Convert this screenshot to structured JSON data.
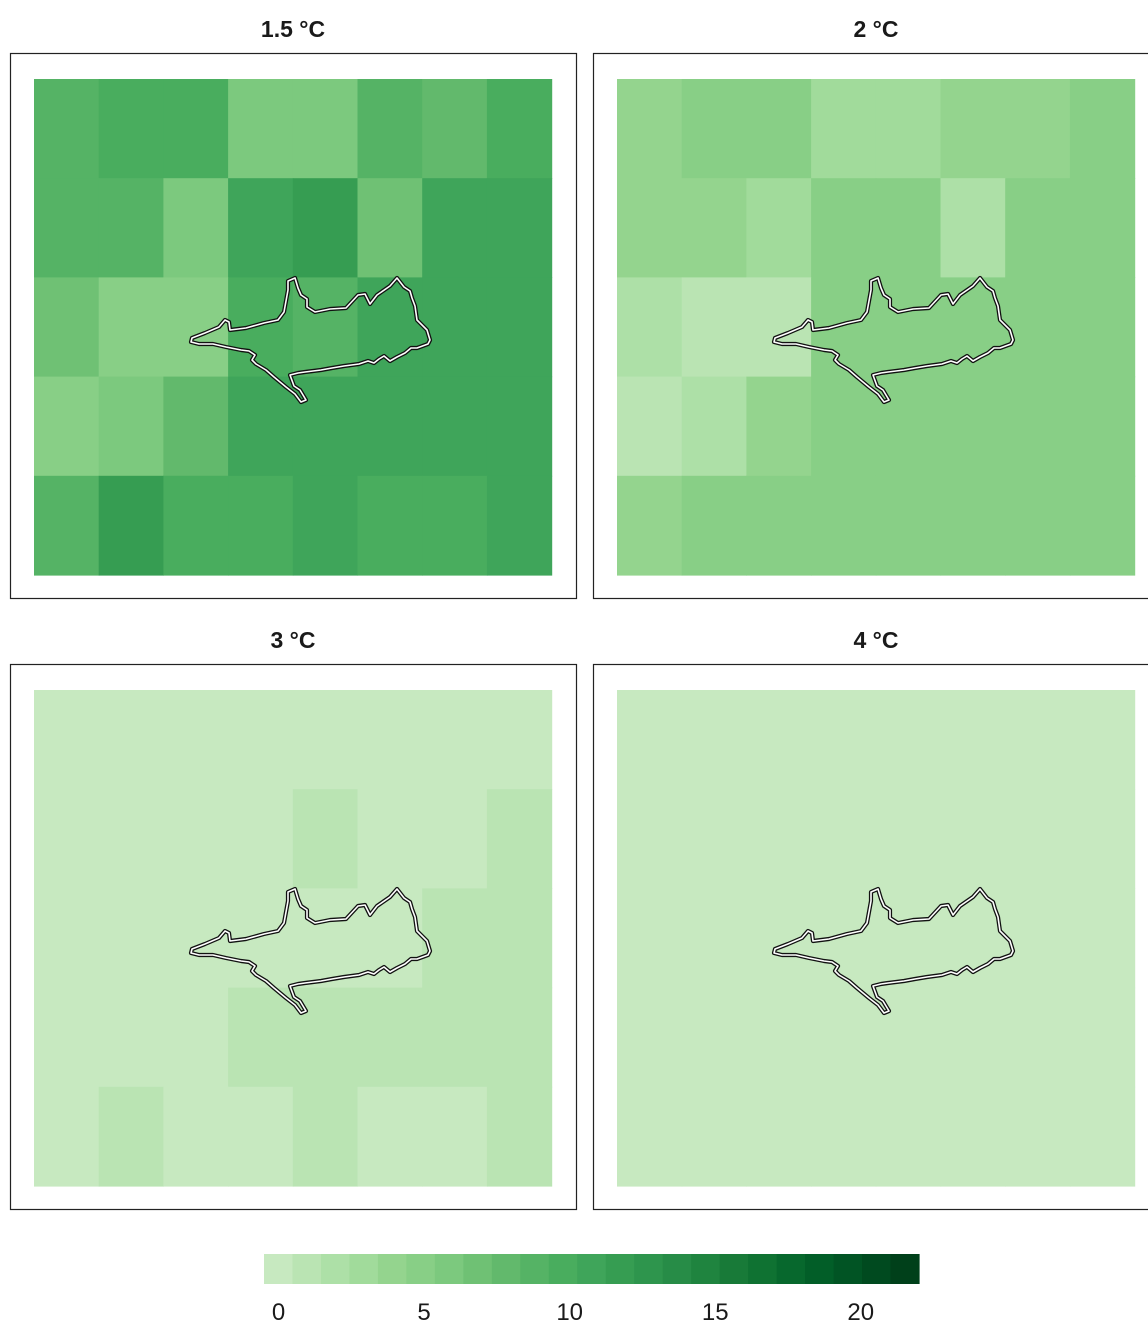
{
  "chart_data": {
    "type": "heatmap",
    "panels": [
      {
        "title": "1.5 °C",
        "grid": [
          [
            9,
            10,
            10,
            6,
            6,
            9,
            8,
            10
          ],
          [
            9,
            9,
            6,
            11,
            12,
            7,
            11,
            11
          ],
          [
            7,
            5,
            5,
            10,
            9,
            11,
            11,
            11
          ],
          [
            5,
            6,
            8,
            11,
            11,
            11,
            11,
            11
          ],
          [
            9,
            12,
            10,
            10,
            11,
            10,
            10,
            11
          ]
        ]
      },
      {
        "title": "2 °C",
        "grid": [
          [
            4,
            5,
            5,
            3,
            3,
            4,
            4,
            5
          ],
          [
            4,
            4,
            3,
            5,
            5,
            2,
            5,
            5
          ],
          [
            2,
            1,
            1,
            5,
            5,
            5,
            5,
            5
          ],
          [
            1,
            2,
            4,
            5,
            5,
            5,
            5,
            5
          ],
          [
            4,
            5,
            5,
            5,
            5,
            5,
            5,
            5
          ]
        ]
      },
      {
        "title": "3 °C",
        "grid": [
          [
            0,
            0,
            0,
            0,
            0,
            0,
            0,
            0
          ],
          [
            0,
            0,
            0,
            0,
            1,
            0,
            0,
            1
          ],
          [
            0,
            0,
            0,
            0,
            0,
            0,
            1,
            1
          ],
          [
            0,
            0,
            0,
            1,
            1,
            1,
            1,
            1
          ],
          [
            0,
            1,
            0,
            0,
            1,
            0,
            0,
            1
          ]
        ]
      },
      {
        "title": "4 °C",
        "grid": [
          [
            0,
            0,
            0,
            0,
            0,
            0,
            0,
            0
          ],
          [
            0,
            0,
            0,
            0,
            0,
            0,
            0,
            0
          ],
          [
            0,
            0,
            0,
            0,
            0,
            0,
            0,
            0
          ],
          [
            0,
            0,
            0,
            0,
            0,
            0,
            0,
            0
          ],
          [
            0,
            0,
            0,
            0,
            0,
            0,
            0,
            0
          ]
        ]
      }
    ],
    "colorbar": {
      "ticks": [
        "0",
        "5",
        "10",
        "15",
        "20"
      ],
      "min": -0.5,
      "max": 22,
      "steps": 23,
      "colors": [
        "#c7e9c0",
        "#bae4b3",
        "#ade0a7",
        "#a1db9b",
        "#94d48e",
        "#88cf86",
        "#7cc97e",
        "#6fc174",
        "#62b96c",
        "#55b365",
        "#49ad5e",
        "#3fa55a",
        "#369d52",
        "#2e954d",
        "#278c47",
        "#1f843f",
        "#187a38",
        "#0f7232",
        "#07682d",
        "#025e28",
        "#015424",
        "#004a1f",
        "#00401a"
      ]
    }
  }
}
